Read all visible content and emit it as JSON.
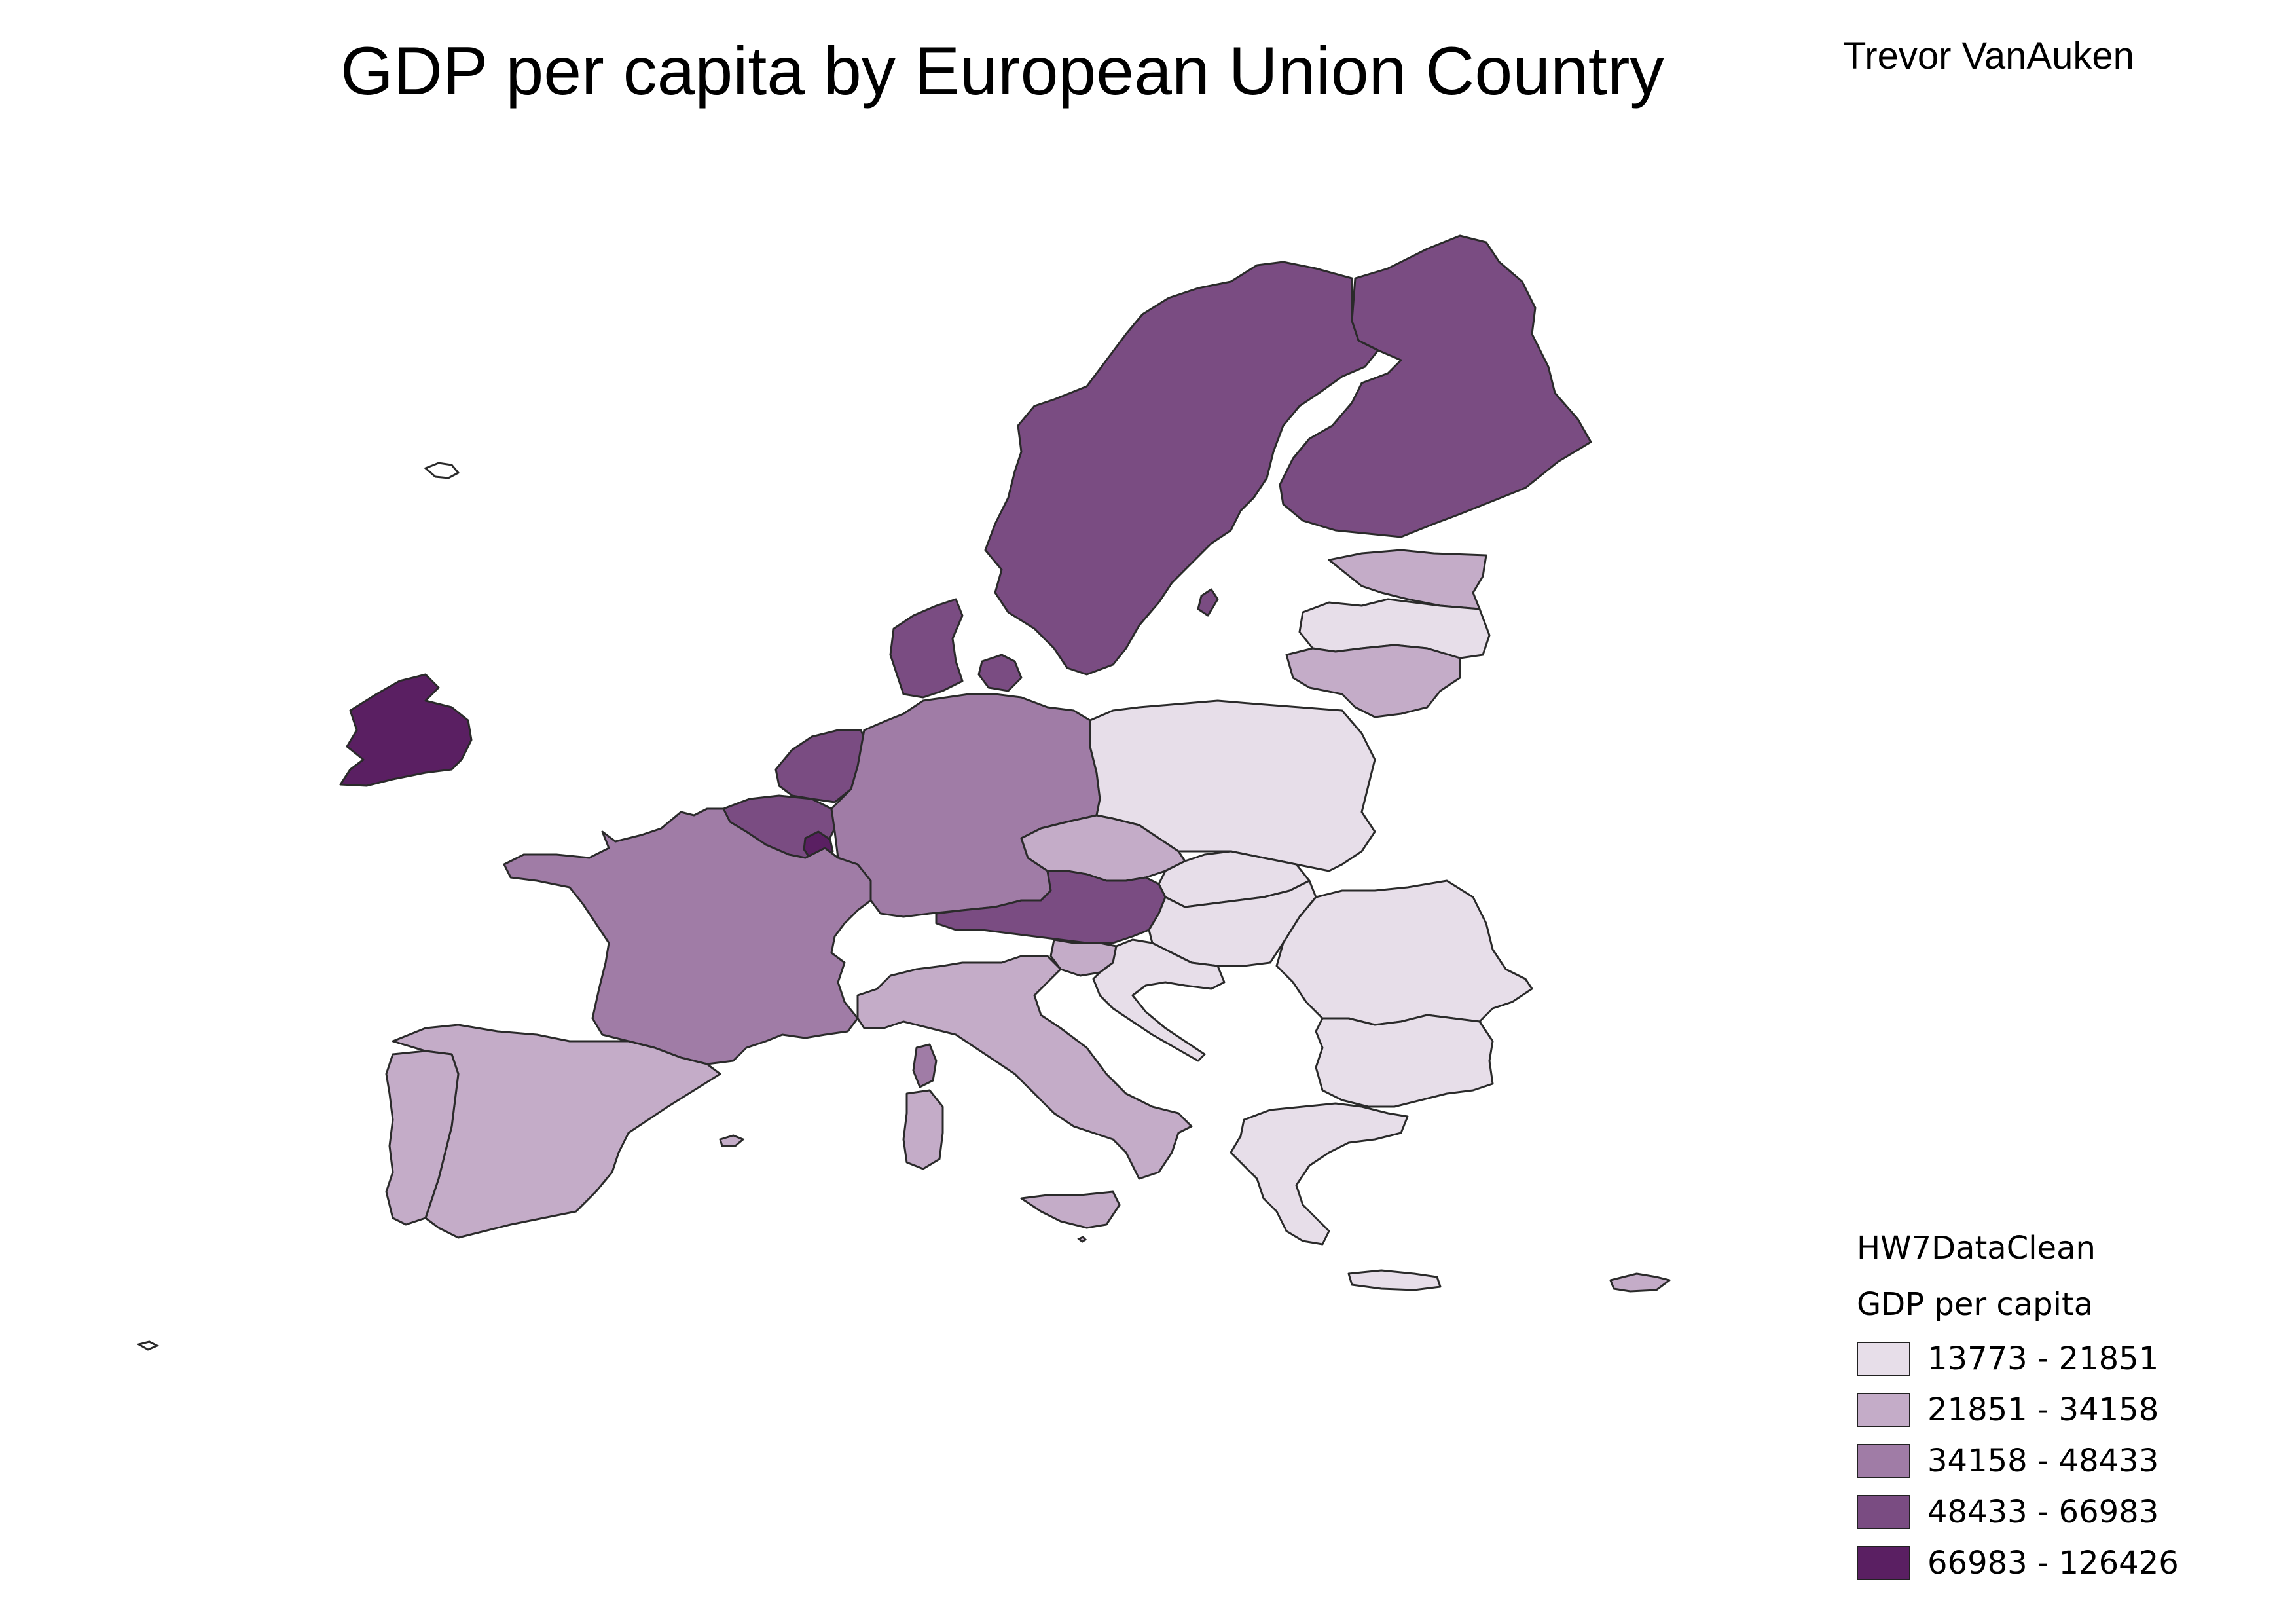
{
  "title": "GDP per capita by European Union Country",
  "author": "Trevor VanAuken",
  "legend": {
    "layer_name": "HW7DataClean",
    "field_name": "GDP per capita",
    "classes": [
      {
        "label": "13773 - 21851",
        "color": "#e7dee9"
      },
      {
        "label": "21851 - 34158",
        "color": "#c4acc8"
      },
      {
        "label": "34158 - 48433",
        "color": "#a07ca6"
      },
      {
        "label": "48433 - 66983",
        "color": "#7a4c82"
      },
      {
        "label": "66983 - 126426",
        "color": "#5a1f62"
      }
    ]
  },
  "regions": [
    {
      "id": "ireland",
      "class": 4
    },
    {
      "id": "sweden",
      "class": 3
    },
    {
      "id": "finland",
      "class": 3
    },
    {
      "id": "denmark",
      "class": 3
    },
    {
      "id": "netherlands",
      "class": 3
    },
    {
      "id": "belgium",
      "class": 3
    },
    {
      "id": "luxembourg",
      "class": 4
    },
    {
      "id": "austria",
      "class": 3
    },
    {
      "id": "germany",
      "class": 2
    },
    {
      "id": "france",
      "class": 2
    },
    {
      "id": "spain",
      "class": 1
    },
    {
      "id": "portugal",
      "class": 1
    },
    {
      "id": "italy",
      "class": 1
    },
    {
      "id": "slovenia",
      "class": 1
    },
    {
      "id": "czechia",
      "class": 1
    },
    {
      "id": "estonia",
      "class": 1
    },
    {
      "id": "lithuania",
      "class": 1
    },
    {
      "id": "latvia",
      "class": 0
    },
    {
      "id": "poland",
      "class": 0
    },
    {
      "id": "slovakia",
      "class": 0
    },
    {
      "id": "hungary",
      "class": 0
    },
    {
      "id": "romania",
      "class": 0
    },
    {
      "id": "bulgaria",
      "class": 0
    },
    {
      "id": "croatia",
      "class": 0
    },
    {
      "id": "greece",
      "class": 0
    },
    {
      "id": "cyprus",
      "class": 1
    },
    {
      "id": "malta",
      "class": 1
    }
  ]
}
